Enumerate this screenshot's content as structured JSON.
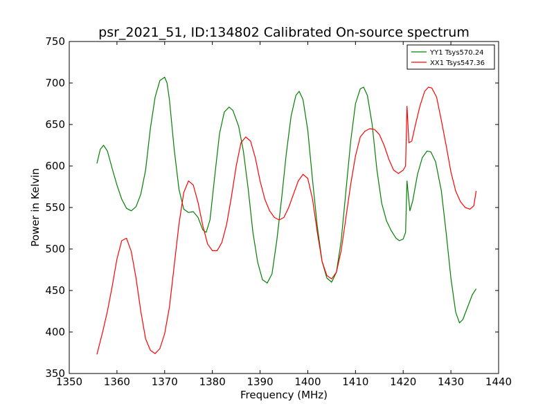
{
  "chart_data": {
    "type": "line",
    "title": "psr_2021_51, ID:134802 Calibrated On-source spectrum",
    "xlabel": "Frequency (MHz)",
    "ylabel": "Power in Kelvin",
    "xlim": [
      1350,
      1440
    ],
    "ylim": [
      350,
      750
    ],
    "xticks": [
      1350,
      1360,
      1370,
      1380,
      1390,
      1400,
      1410,
      1420,
      1430,
      1440
    ],
    "yticks": [
      350,
      400,
      450,
      500,
      550,
      600,
      650,
      700,
      750
    ],
    "xtick_labels": [
      "1350",
      "1360",
      "1370",
      "1380",
      "1390",
      "1400",
      "1410",
      "1420",
      "1430",
      "1440"
    ],
    "ytick_labels": [
      "350",
      "400",
      "450",
      "500",
      "550",
      "600",
      "650",
      "700",
      "750"
    ],
    "grid": false,
    "legend_position": "top-right",
    "series": [
      {
        "name": "YY1 Tsys570.24",
        "color": "#008000",
        "points": [
          [
            1355.8,
            603
          ],
          [
            1356.5,
            620
          ],
          [
            1357.2,
            625
          ],
          [
            1358,
            618
          ],
          [
            1359,
            597
          ],
          [
            1360,
            577
          ],
          [
            1361,
            560
          ],
          [
            1362,
            549
          ],
          [
            1363,
            546
          ],
          [
            1364,
            551
          ],
          [
            1365,
            566
          ],
          [
            1366,
            595
          ],
          [
            1367,
            645
          ],
          [
            1368,
            683
          ],
          [
            1369,
            703
          ],
          [
            1370,
            707
          ],
          [
            1370.5,
            700
          ],
          [
            1371,
            680
          ],
          [
            1372,
            620
          ],
          [
            1373,
            572
          ],
          [
            1374,
            548
          ],
          [
            1375,
            544
          ],
          [
            1376,
            545
          ],
          [
            1377,
            538
          ],
          [
            1378,
            523
          ],
          [
            1378.7,
            520
          ],
          [
            1379.5,
            535
          ],
          [
            1380.5,
            588
          ],
          [
            1381.5,
            639
          ],
          [
            1382.5,
            665
          ],
          [
            1383.5,
            671
          ],
          [
            1384.3,
            667
          ],
          [
            1385.5,
            648
          ],
          [
            1386.5,
            618
          ],
          [
            1387.5,
            573
          ],
          [
            1388.5,
            520
          ],
          [
            1389.5,
            484
          ],
          [
            1390.5,
            463
          ],
          [
            1391.5,
            459
          ],
          [
            1392.5,
            470
          ],
          [
            1393.5,
            510
          ],
          [
            1394.5,
            560
          ],
          [
            1395.5,
            615
          ],
          [
            1396.5,
            660
          ],
          [
            1397.5,
            685
          ],
          [
            1398.2,
            690
          ],
          [
            1399,
            680
          ],
          [
            1400,
            643
          ],
          [
            1401,
            583
          ],
          [
            1402,
            527
          ],
          [
            1403,
            485
          ],
          [
            1404,
            465
          ],
          [
            1405,
            460
          ],
          [
            1406,
            472
          ],
          [
            1407,
            510
          ],
          [
            1408,
            570
          ],
          [
            1409,
            630
          ],
          [
            1410,
            675
          ],
          [
            1411,
            693
          ],
          [
            1411.7,
            695
          ],
          [
            1412.5,
            685
          ],
          [
            1413.5,
            650
          ],
          [
            1414.5,
            595
          ],
          [
            1415.5,
            555
          ],
          [
            1416.5,
            534
          ],
          [
            1417.5,
            522
          ],
          [
            1418.5,
            513
          ],
          [
            1419.2,
            510
          ],
          [
            1420,
            512
          ],
          [
            1420.5,
            520
          ],
          [
            1420.8,
            582
          ],
          [
            1421.4,
            546
          ],
          [
            1422,
            558
          ],
          [
            1423,
            590
          ],
          [
            1424,
            610
          ],
          [
            1425,
            618
          ],
          [
            1425.8,
            617
          ],
          [
            1426.8,
            605
          ],
          [
            1428,
            570
          ],
          [
            1429,
            520
          ],
          [
            1430,
            465
          ],
          [
            1431,
            424
          ],
          [
            1431.8,
            411
          ],
          [
            1432.5,
            415
          ],
          [
            1433.5,
            430
          ],
          [
            1434.5,
            445
          ],
          [
            1435.3,
            452
          ]
        ]
      },
      {
        "name": "XX1 Tsys547.36",
        "color": "#ff0000",
        "points": [
          [
            1355.8,
            373
          ],
          [
            1357,
            400
          ],
          [
            1358,
            425
          ],
          [
            1359,
            455
          ],
          [
            1360,
            488
          ],
          [
            1361,
            510
          ],
          [
            1362,
            513
          ],
          [
            1363,
            497
          ],
          [
            1364,
            465
          ],
          [
            1365,
            425
          ],
          [
            1366,
            392
          ],
          [
            1367,
            378
          ],
          [
            1368,
            374
          ],
          [
            1369,
            380
          ],
          [
            1370,
            398
          ],
          [
            1371,
            430
          ],
          [
            1372,
            480
          ],
          [
            1373,
            530
          ],
          [
            1374,
            568
          ],
          [
            1375,
            582
          ],
          [
            1376,
            577
          ],
          [
            1377,
            556
          ],
          [
            1378,
            528
          ],
          [
            1379,
            506
          ],
          [
            1380,
            498
          ],
          [
            1381,
            498
          ],
          [
            1382,
            508
          ],
          [
            1383,
            530
          ],
          [
            1384,
            563
          ],
          [
            1385,
            600
          ],
          [
            1386,
            628
          ],
          [
            1387,
            635
          ],
          [
            1388,
            630
          ],
          [
            1389,
            610
          ],
          [
            1390,
            582
          ],
          [
            1391,
            560
          ],
          [
            1392,
            546
          ],
          [
            1393,
            538
          ],
          [
            1394,
            535
          ],
          [
            1395,
            538
          ],
          [
            1396,
            550
          ],
          [
            1397,
            566
          ],
          [
            1398,
            582
          ],
          [
            1399,
            590
          ],
          [
            1400,
            585
          ],
          [
            1401,
            560
          ],
          [
            1402,
            520
          ],
          [
            1403,
            485
          ],
          [
            1404,
            468
          ],
          [
            1405,
            464
          ],
          [
            1406,
            472
          ],
          [
            1407,
            498
          ],
          [
            1408,
            538
          ],
          [
            1409,
            578
          ],
          [
            1410,
            612
          ],
          [
            1411,
            635
          ],
          [
            1412,
            642
          ],
          [
            1413,
            645
          ],
          [
            1414,
            644
          ],
          [
            1415,
            638
          ],
          [
            1416,
            625
          ],
          [
            1417,
            608
          ],
          [
            1418,
            595
          ],
          [
            1419,
            591
          ],
          [
            1420,
            595
          ],
          [
            1420.5,
            600
          ],
          [
            1420.8,
            672
          ],
          [
            1421.2,
            628
          ],
          [
            1421.8,
            630
          ],
          [
            1422.5,
            648
          ],
          [
            1423.5,
            672
          ],
          [
            1424.5,
            690
          ],
          [
            1425.3,
            695
          ],
          [
            1426,
            694
          ],
          [
            1427,
            683
          ],
          [
            1428,
            655
          ],
          [
            1429,
            625
          ],
          [
            1430,
            593
          ],
          [
            1431,
            570
          ],
          [
            1432,
            557
          ],
          [
            1433,
            550
          ],
          [
            1434,
            548
          ],
          [
            1434.8,
            552
          ],
          [
            1435.3,
            570
          ]
        ]
      }
    ]
  }
}
